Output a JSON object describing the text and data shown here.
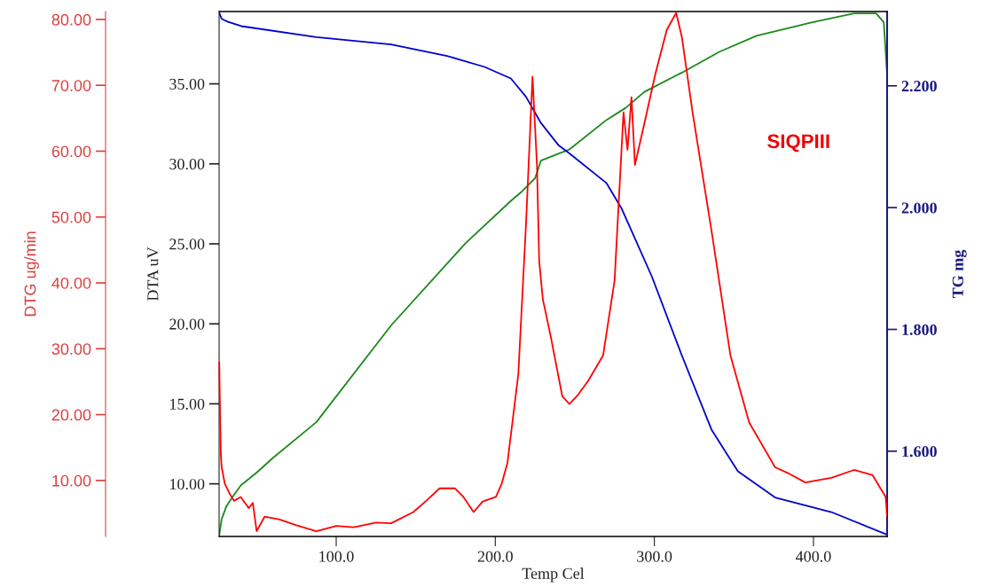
{
  "chart_data": {
    "type": "line",
    "xlabel": "Temp Cel",
    "ylabel": "DTA uV",
    "y2label": "TG mg",
    "y3label": "DTG ug/min",
    "annotations": [
      "SIQPIII"
    ],
    "xlim": [
      26.4,
      446.3
    ],
    "xticks": [
      {
        "value": 100,
        "label": "100.0"
      },
      {
        "value": 200,
        "label": "200.0"
      },
      {
        "value": 300,
        "label": "300.0"
      },
      {
        "value": 400,
        "label": "400.0"
      }
    ],
    "ylim": [
      6.71,
      39.52
    ],
    "yticks": [
      {
        "value": 10,
        "label": "10.00"
      },
      {
        "value": 15,
        "label": "15.00"
      },
      {
        "value": 20,
        "label": "20.00"
      },
      {
        "value": 25,
        "label": "25.00"
      },
      {
        "value": 30,
        "label": "30.00"
      },
      {
        "value": 35,
        "label": "35.00"
      }
    ],
    "y2lim": [
      1.46,
      2.322
    ],
    "y2ticks": [
      {
        "value": 1.6,
        "label": "1.600"
      },
      {
        "value": 1.8,
        "label": "1.800"
      },
      {
        "value": 2.0,
        "label": "2.000"
      },
      {
        "value": 2.2,
        "label": "2.200"
      }
    ],
    "y3lim": [
      1.5,
      81.2
    ],
    "y3ticks": [
      {
        "value": 10,
        "label": "10.00"
      },
      {
        "value": 20,
        "label": "20.00"
      },
      {
        "value": 30,
        "label": "30.00"
      },
      {
        "value": 40,
        "label": "40.00"
      },
      {
        "value": 50,
        "label": "50.00"
      },
      {
        "value": 60,
        "label": "60.00"
      },
      {
        "value": 70,
        "label": "70.00"
      },
      {
        "value": 80,
        "label": "80.00"
      }
    ],
    "grid": false,
    "legend": false,
    "marker": "none",
    "line_style": "solid",
    "series": [
      {
        "axis": "y",
        "color": "#1a8a1a",
        "x": [
          26.5,
          28,
          31,
          35,
          40,
          50,
          60,
          87.5,
          134.5,
          181.4,
          210,
          217,
          225,
          228.7,
          240,
          246.6,
          270,
          282,
          293.7,
          317.3,
          340.8,
          364.2,
          399.3,
          425.5,
          439.4,
          444.2,
          446.3
        ],
        "values": [
          6.8,
          7.8,
          8.6,
          9.2,
          9.9,
          10.7,
          11.6,
          13.85,
          19.9,
          25.05,
          27.7,
          28.3,
          29.1,
          30.2,
          30.65,
          30.9,
          32.75,
          33.5,
          34.5,
          35.7,
          37.0,
          38.0,
          38.85,
          39.4,
          39.4,
          38.85,
          35.6
        ]
      },
      {
        "axis": "y2",
        "color": "#0000cc",
        "x": [
          26.5,
          28,
          32,
          40.3,
          87.5,
          134.5,
          169.7,
          193.3,
          209.8,
          219.3,
          228.7,
          239.9,
          246.6,
          270,
          279.5,
          298.4,
          317.3,
          336,
          352.5,
          375.9,
          411.3,
          446.3
        ],
        "values": [
          2.32,
          2.31,
          2.305,
          2.298,
          2.28,
          2.268,
          2.249,
          2.231,
          2.212,
          2.182,
          2.139,
          2.102,
          2.089,
          2.04,
          1.998,
          1.887,
          1.757,
          1.635,
          1.567,
          1.524,
          1.5,
          1.463
        ]
      },
      {
        "axis": "y3",
        "color": "#ff0000",
        "x": [
          26.5,
          27,
          27.5,
          28,
          30,
          33,
          35.8,
          40,
          45,
          47.6,
          50,
          55,
          64,
          75,
          87.5,
          100,
          111,
          125,
          134.5,
          148.5,
          157,
          165,
          174.7,
          180,
          186.4,
          192,
          200.4,
          204,
          207.6,
          214.5,
          219.3,
          223.4,
          226.2,
          227.6,
          229.9,
          234.9,
          242.1,
          246.6,
          252,
          258.3,
          267.8,
          275,
          280.6,
          283.1,
          285.6,
          287.8,
          293.7,
          300.6,
          307.8,
          313.7,
          317.3,
          324,
          336,
          347.8,
          359.6,
          375.9,
          385,
          394.9,
          411.3,
          425.5,
          437.2,
          445.4,
          446.3
        ],
        "values": [
          27.9,
          20,
          14,
          12,
          9.5,
          8,
          6.9,
          7.5,
          5.8,
          6.6,
          2.3,
          4.5,
          4.1,
          3.2,
          2.3,
          3.1,
          2.9,
          3.6,
          3.5,
          5.2,
          7.0,
          8.8,
          8.8,
          7.5,
          5.2,
          6.8,
          7.5,
          9.5,
          12.6,
          26.2,
          48.9,
          71.3,
          57.9,
          43.3,
          37.5,
          31.8,
          22.8,
          21.6,
          23.0,
          25.1,
          29.0,
          40.4,
          65.9,
          60.2,
          68.2,
          57.9,
          64.2,
          71.7,
          78.4,
          81.0,
          77.3,
          65.9,
          47.8,
          29.0,
          18.8,
          12.0,
          11.0,
          9.7,
          10.4,
          11.6,
          10.8,
          7.5,
          4.6
        ]
      }
    ]
  }
}
